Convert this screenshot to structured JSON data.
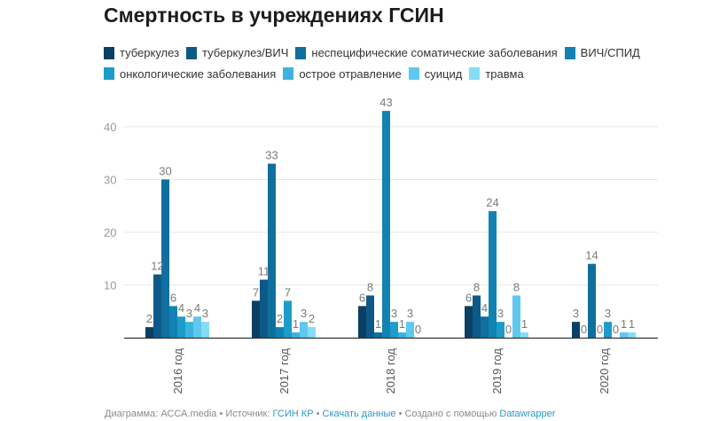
{
  "chart_data": {
    "type": "bar",
    "title": "Смертность в учреждениях ГСИН",
    "categories": [
      "2016 год",
      "2017 год",
      "2018 год",
      "2019 год",
      "2020 год"
    ],
    "series": [
      {
        "name": "туберкулез",
        "color": "#0b3f63",
        "values": [
          2,
          7,
          6,
          6,
          3
        ]
      },
      {
        "name": "туберкулез/ВИЧ",
        "color": "#0d5a88",
        "values": [
          12,
          11,
          8,
          8,
          0
        ]
      },
      {
        "name": "неспецифические соматические заболевания",
        "color": "#0f6f9e",
        "values": [
          30,
          33,
          1,
          4,
          14
        ]
      },
      {
        "name": "ВИЧ/СПИД",
        "color": "#1282b2",
        "values": [
          6,
          2,
          43,
          24,
          0
        ]
      },
      {
        "name": "онкологические заболевания",
        "color": "#1c9cc9",
        "values": [
          4,
          7,
          3,
          3,
          3
        ]
      },
      {
        "name": "острое отравление",
        "color": "#3db2e0",
        "values": [
          3,
          1,
          1,
          0,
          0
        ]
      },
      {
        "name": "суицид",
        "color": "#5fc8ef",
        "values": [
          4,
          3,
          3,
          8,
          1
        ]
      },
      {
        "name": "травма",
        "color": "#84dcf6",
        "values": [
          3,
          2,
          0,
          1,
          1
        ]
      }
    ],
    "yticks": [
      10,
      20,
      30,
      40
    ],
    "ylim": [
      0,
      43
    ],
    "grid": true,
    "legend_position": "top-left",
    "xlabel": "",
    "ylabel": ""
  },
  "footer": {
    "chart_by_label": "Диаграмма: АССА.media",
    "separator": " • ",
    "source_label": "Источник: ",
    "source_link": "ГСИН КР",
    "download_link": "Скачать данные",
    "created_label": "Создано с помощью ",
    "created_link": "Datawrapper"
  }
}
